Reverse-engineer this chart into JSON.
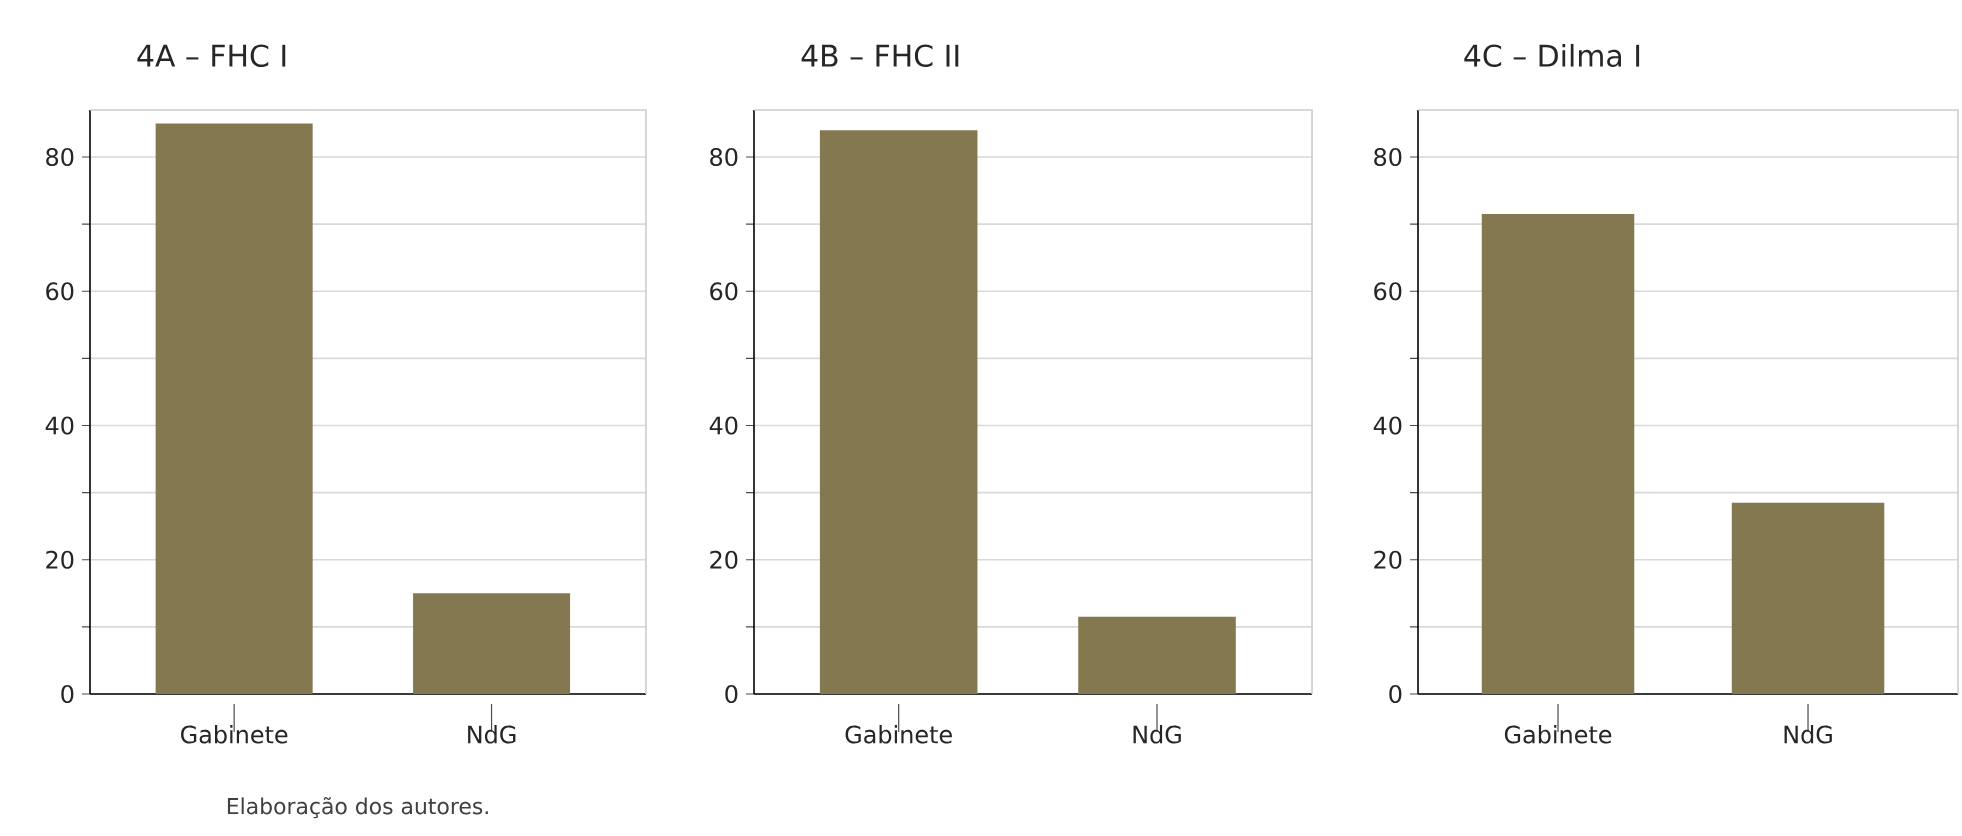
{
  "chart_data": [
    {
      "type": "bar",
      "title": "4A – FHC I",
      "categories": [
        "Gabinete",
        "NdG"
      ],
      "values": [
        85,
        15
      ],
      "color": "#847850",
      "ylim": [
        0,
        87
      ],
      "yticks": [
        0,
        {
          "value": 10,
          "label": null
        },
        20,
        {
          "value": 30,
          "label": null
        },
        40,
        {
          "value": 50,
          "label": null
        },
        60,
        {
          "value": 70,
          "label": null
        },
        80
      ],
      "grid": "y",
      "annotations": [
        "Elaboração dos autores."
      ]
    },
    {
      "type": "bar",
      "title": "4B – FHC II",
      "categories": [
        "Gabinete",
        "NdG"
      ],
      "values": [
        84,
        11.5
      ],
      "color": "#847850",
      "ylim": [
        0,
        87
      ],
      "yticks": [
        0,
        {
          "value": 10,
          "label": null
        },
        20,
        {
          "value": 30,
          "label": null
        },
        40,
        {
          "value": 50,
          "label": null
        },
        60,
        {
          "value": 70,
          "label": null
        },
        80
      ],
      "grid": "y"
    },
    {
      "type": "bar",
      "title": "4C – Dilma I",
      "categories": [
        "Gabinete",
        "NdG"
      ],
      "values": [
        71.5,
        28.5
      ],
      "color": "#847850",
      "ylim": [
        0,
        87
      ],
      "yticks": [
        0,
        {
          "value": 10,
          "label": null
        },
        20,
        {
          "value": 30,
          "label": null
        },
        40,
        {
          "value": 50,
          "label": null
        },
        60,
        {
          "value": 70,
          "label": null
        },
        80
      ],
      "grid": "y"
    }
  ]
}
